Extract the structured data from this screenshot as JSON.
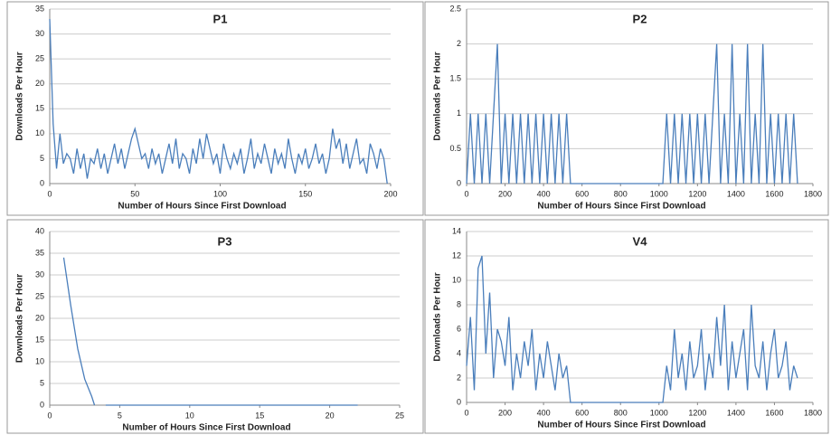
{
  "chart_data": [
    {
      "type": "line",
      "title": "P1",
      "x_label": "Number of Hours Since First Download",
      "y_label": "Downloads Per Hour",
      "color": "#4a7ebb",
      "grid": true,
      "xlim": [
        0,
        200
      ],
      "xticks": [
        0,
        50,
        100,
        150,
        200
      ],
      "ylim": [
        0,
        35
      ],
      "yticks": [
        0,
        5,
        10,
        15,
        20,
        25,
        30,
        35
      ],
      "x": [
        0,
        2,
        4,
        6,
        8,
        10,
        12,
        14,
        16,
        18,
        20,
        22,
        24,
        26,
        28,
        30,
        32,
        34,
        36,
        38,
        40,
        42,
        44,
        46,
        48,
        50,
        52,
        54,
        56,
        58,
        60,
        62,
        64,
        66,
        68,
        70,
        72,
        74,
        76,
        78,
        80,
        82,
        84,
        86,
        88,
        90,
        92,
        94,
        96,
        98,
        100,
        102,
        104,
        106,
        108,
        110,
        112,
        114,
        116,
        118,
        120,
        122,
        124,
        126,
        128,
        130,
        132,
        134,
        136,
        138,
        140,
        142,
        144,
        146,
        148,
        150,
        152,
        154,
        156,
        158,
        160,
        162,
        164,
        166,
        168,
        170,
        172,
        174,
        176,
        178,
        180,
        182,
        184,
        186,
        188,
        190,
        192,
        194,
        196,
        198
      ],
      "values": [
        33,
        12,
        3,
        10,
        4,
        6,
        5,
        2,
        7,
        3,
        6,
        1,
        5,
        4,
        7,
        3,
        6,
        2,
        5,
        8,
        4,
        7,
        3,
        6,
        9,
        11,
        8,
        5,
        6,
        3,
        7,
        4,
        6,
        2,
        5,
        8,
        4,
        9,
        3,
        6,
        5,
        2,
        7,
        4,
        9,
        5,
        10,
        7,
        4,
        6,
        2,
        8,
        5,
        3,
        6,
        4,
        7,
        2,
        5,
        9,
        3,
        6,
        4,
        8,
        5,
        2,
        7,
        4,
        6,
        3,
        9,
        5,
        2,
        6,
        4,
        7,
        3,
        5,
        8,
        4,
        6,
        2,
        5,
        11,
        7,
        9,
        4,
        8,
        3,
        6,
        9,
        4,
        5,
        2,
        8,
        6,
        3,
        7,
        5,
        0
      ]
    },
    {
      "type": "line",
      "title": "P2",
      "x_label": "Number of Hours Since First Download",
      "y_label": "Downloads Per Hour",
      "color": "#4a7ebb",
      "grid": true,
      "xlim": [
        0,
        1800
      ],
      "xticks": [
        0,
        200,
        400,
        600,
        800,
        1000,
        1200,
        1400,
        1600,
        1800
      ],
      "ylim": [
        0,
        2.5
      ],
      "yticks": [
        0,
        0.5,
        1,
        1.5,
        2,
        2.5
      ],
      "x": [
        0,
        20,
        40,
        60,
        80,
        100,
        120,
        140,
        160,
        180,
        200,
        220,
        240,
        260,
        280,
        300,
        320,
        340,
        360,
        380,
        400,
        420,
        440,
        460,
        480,
        500,
        520,
        540,
        560,
        580,
        600,
        620,
        640,
        660,
        680,
        700,
        720,
        740,
        760,
        780,
        800,
        820,
        840,
        860,
        880,
        900,
        920,
        940,
        960,
        980,
        1000,
        1020,
        1040,
        1060,
        1080,
        1100,
        1120,
        1140,
        1160,
        1180,
        1200,
        1220,
        1240,
        1260,
        1280,
        1300,
        1320,
        1340,
        1360,
        1380,
        1400,
        1420,
        1440,
        1460,
        1480,
        1500,
        1520,
        1540,
        1560,
        1580,
        1600,
        1620,
        1640,
        1660,
        1680,
        1700,
        1720
      ],
      "values": [
        0,
        1,
        0,
        1,
        0,
        1,
        0,
        1,
        2,
        0,
        1,
        0,
        1,
        0,
        1,
        0,
        1,
        0,
        1,
        0,
        1,
        0,
        1,
        0,
        1,
        0,
        1,
        0,
        0,
        0,
        0,
        0,
        0,
        0,
        0,
        0,
        0,
        0,
        0,
        0,
        0,
        0,
        0,
        0,
        0,
        0,
        0,
        0,
        0,
        0,
        0,
        0,
        1,
        0,
        1,
        0,
        1,
        0,
        1,
        0,
        1,
        0,
        1,
        0,
        1,
        2,
        0,
        1,
        0,
        2,
        0,
        1,
        0,
        2,
        0,
        1,
        0,
        2,
        0,
        1,
        0,
        1,
        0,
        1,
        0,
        1,
        0
      ]
    },
    {
      "type": "line",
      "title": "P3",
      "x_label": "Number of Hours Since First Download",
      "y_label": "Downloads Per Hour",
      "color": "#4a7ebb",
      "grid": true,
      "xlim": [
        0,
        25
      ],
      "xticks": [
        0,
        5,
        10,
        15,
        20,
        25
      ],
      "ylim": [
        0,
        40
      ],
      "yticks": [
        0,
        5,
        10,
        15,
        20,
        25,
        30,
        35,
        40
      ],
      "x": [
        1,
        1.5,
        2,
        2.5,
        3,
        3.2,
        3.6,
        4,
        5,
        6,
        7,
        8,
        9,
        10,
        11,
        12,
        13,
        14,
        15,
        16,
        17,
        18,
        19,
        20,
        21,
        22
      ],
      "values": [
        34,
        23,
        13,
        6,
        2,
        0,
        null,
        0,
        0,
        0,
        0,
        0,
        0,
        0,
        0,
        0,
        0,
        0,
        0,
        0,
        0,
        0,
        0,
        0,
        0,
        0
      ]
    },
    {
      "type": "line",
      "title": "V4",
      "x_label": "Number of Hours Since First Download",
      "y_label": "Downloads Per Hour",
      "color": "#4a7ebb",
      "grid": true,
      "xlim": [
        0,
        1800
      ],
      "xticks": [
        0,
        200,
        400,
        600,
        800,
        1000,
        1200,
        1400,
        1600,
        1800
      ],
      "ylim": [
        0,
        14
      ],
      "yticks": [
        0,
        2,
        4,
        6,
        8,
        10,
        12,
        14
      ],
      "x": [
        0,
        20,
        40,
        60,
        80,
        100,
        120,
        140,
        160,
        180,
        200,
        220,
        240,
        260,
        280,
        300,
        320,
        340,
        360,
        380,
        400,
        420,
        440,
        460,
        480,
        500,
        520,
        540,
        560,
        580,
        600,
        620,
        640,
        660,
        680,
        700,
        720,
        740,
        760,
        780,
        800,
        820,
        840,
        860,
        880,
        900,
        920,
        940,
        960,
        980,
        1000,
        1020,
        1040,
        1060,
        1080,
        1100,
        1120,
        1140,
        1160,
        1180,
        1200,
        1220,
        1240,
        1260,
        1280,
        1300,
        1320,
        1340,
        1360,
        1380,
        1400,
        1420,
        1440,
        1460,
        1480,
        1500,
        1520,
        1540,
        1560,
        1580,
        1600,
        1620,
        1640,
        1660,
        1680,
        1700,
        1720
      ],
      "values": [
        3,
        7,
        1,
        11,
        12,
        4,
        9,
        2,
        6,
        5,
        3,
        7,
        1,
        4,
        2,
        5,
        3,
        6,
        1,
        4,
        2,
        5,
        3,
        1,
        4,
        2,
        3,
        0,
        0,
        0,
        0,
        0,
        0,
        0,
        0,
        0,
        0,
        0,
        0,
        0,
        0,
        0,
        0,
        0,
        0,
        0,
        0,
        0,
        0,
        0,
        0,
        0,
        3,
        1,
        6,
        2,
        4,
        1,
        5,
        2,
        3,
        6,
        1,
        4,
        2,
        7,
        3,
        8,
        1,
        5,
        2,
        4,
        6,
        1,
        8,
        3,
        2,
        5,
        1,
        4,
        6,
        2,
        3,
        5,
        1,
        3,
        2
      ]
    }
  ]
}
